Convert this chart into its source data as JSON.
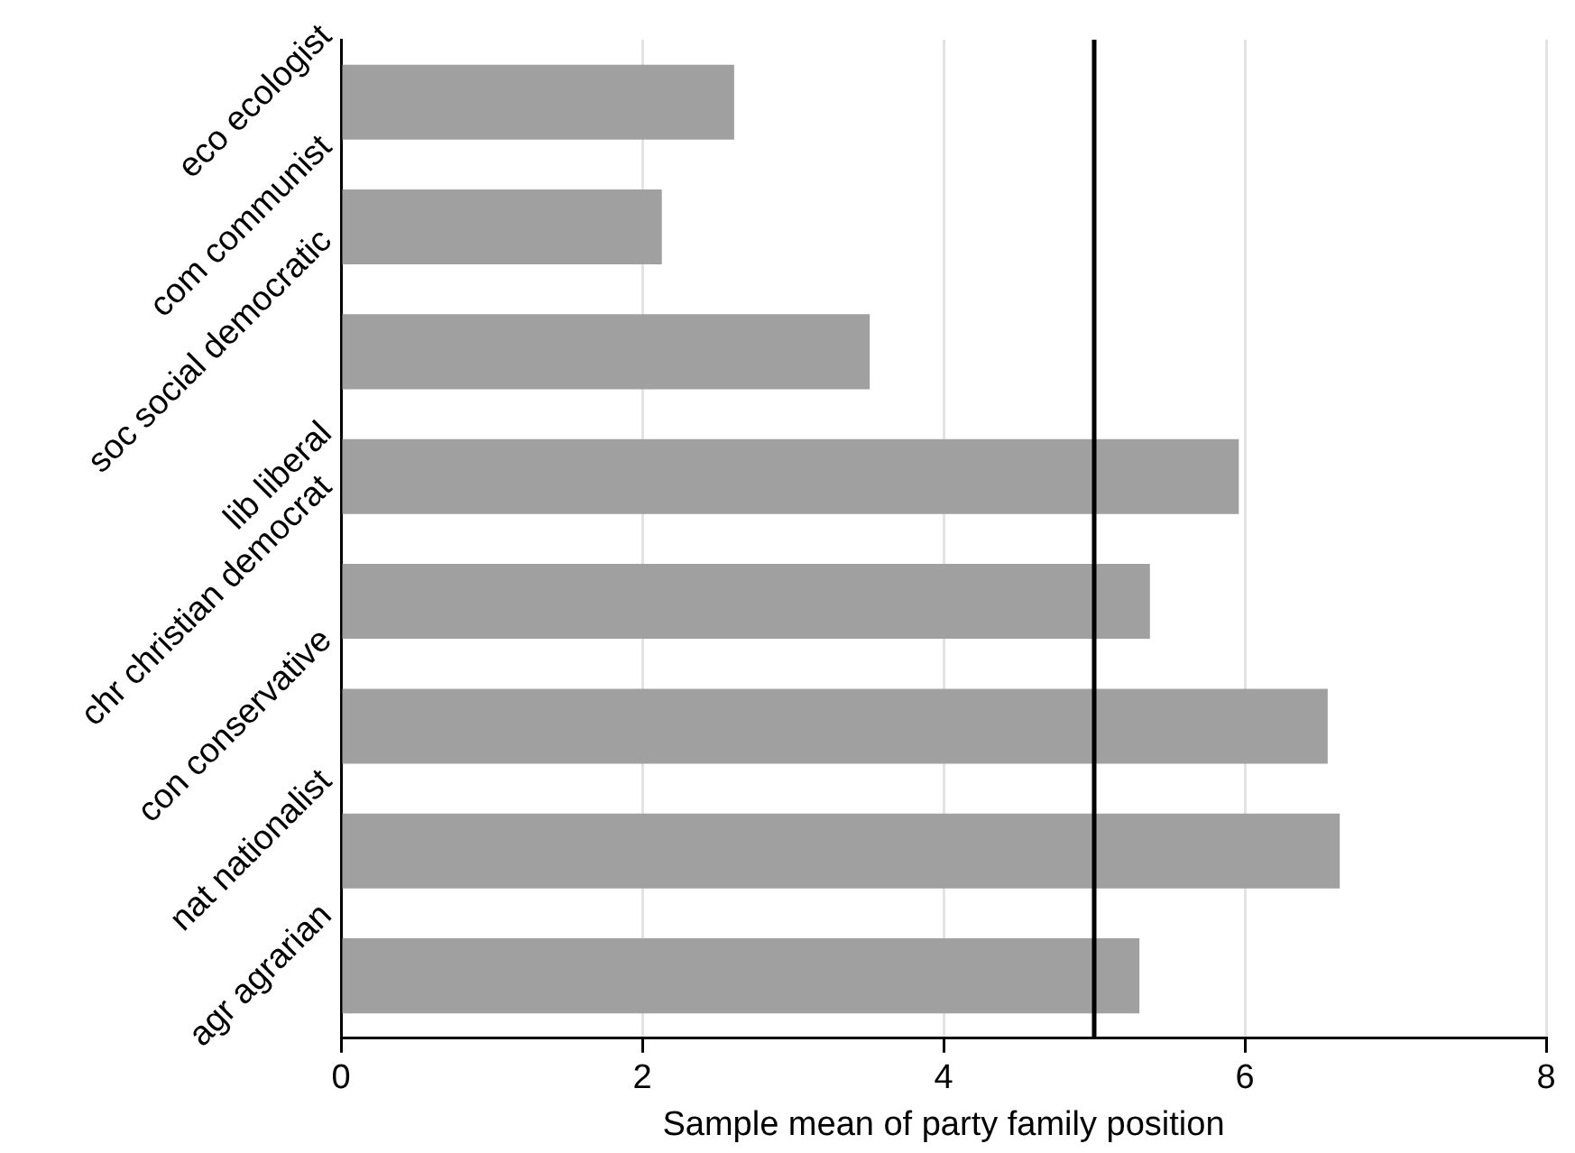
{
  "chart_data": {
    "type": "bar",
    "orientation": "horizontal",
    "xlabel": "Sample mean of party family position",
    "categories": [
      "eco ecologist",
      "com communist",
      "soc social democratic",
      "lib liberal",
      "chr christian democrat",
      "con conservative",
      "nat nationalist",
      "agr agrarian"
    ],
    "values": [
      2.61,
      2.13,
      3.51,
      5.96,
      5.37,
      6.55,
      6.63,
      5.3
    ],
    "color": "#a0a0a0",
    "xlim": [
      0,
      8
    ],
    "xticks": [
      0,
      2,
      4,
      6,
      8
    ],
    "grid": "x",
    "legend": false,
    "ref_lines": [
      {
        "axis": "x",
        "value": 5,
        "color": "#000000"
      }
    ]
  }
}
